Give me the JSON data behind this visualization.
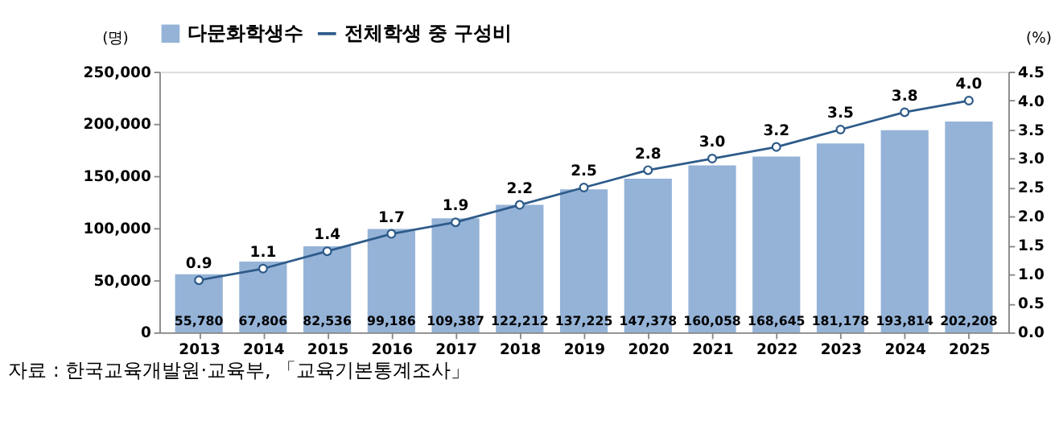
{
  "chart_data": {
    "type": "bar",
    "categories": [
      "2013",
      "2014",
      "2015",
      "2016",
      "2017",
      "2018",
      "2019",
      "2020",
      "2021",
      "2022",
      "2023",
      "2024",
      "2025"
    ],
    "series": [
      {
        "name": "다문화학생수",
        "color": "#95b3d7",
        "values": [
          55780,
          67806,
          82536,
          99186,
          109387,
          122212,
          137225,
          147378,
          160058,
          168645,
          181178,
          193814,
          202208
        ],
        "value_labels": [
          "55,780",
          "67,806",
          "82,536",
          "99,186",
          "109,387",
          "122,212",
          "137,225",
          "147,378",
          "160,058",
          "168,645",
          "181,178",
          "193,814",
          "202,208"
        ]
      },
      {
        "name": "전체학생 중 구성비",
        "type": "line",
        "axis": "y2",
        "color": "#2e5b8a",
        "marker": "circle",
        "values": [
          0.9,
          1.1,
          1.4,
          1.7,
          1.9,
          2.2,
          2.5,
          2.8,
          3.0,
          3.2,
          3.5,
          3.8,
          4.0
        ],
        "value_labels": [
          "0.9",
          "1.1",
          "1.4",
          "1.7",
          "1.9",
          "2.2",
          "2.5",
          "2.8",
          "3.0",
          "3.2",
          "3.5",
          "3.8",
          "4.0"
        ]
      }
    ],
    "ylabel": "(명)",
    "y2label": "(%)",
    "ylim": [
      0,
      250000
    ],
    "yticks": [
      {
        "value": 0,
        "label": "0"
      },
      {
        "value": 50000,
        "label": "50,000"
      },
      {
        "value": 100000,
        "label": "100,000"
      },
      {
        "value": 150000,
        "label": "150,000"
      },
      {
        "value": 200000,
        "label": "200,000"
      },
      {
        "value": 250000,
        "label": "250,000"
      }
    ],
    "y2lim": [
      0,
      4.5
    ],
    "y2ticks": [
      {
        "value": 0,
        "label": "0.0"
      },
      {
        "value": 0.5,
        "label": "0.5"
      },
      {
        "value": 1,
        "label": "1.0"
      },
      {
        "value": 1.5,
        "label": "1.5"
      },
      {
        "value": 2,
        "label": "2.0"
      },
      {
        "value": 2.5,
        "label": "2.5"
      },
      {
        "value": 3,
        "label": "3.0"
      },
      {
        "value": 3.5,
        "label": "3.5"
      },
      {
        "value": 4,
        "label": "4.0"
      },
      {
        "value": 4.5,
        "label": "4.5"
      }
    ],
    "grid": false,
    "legend": "top",
    "annotations": [
      "자료 : 한국교육개발원·교육부, 「교육기본통계조사」"
    ]
  }
}
